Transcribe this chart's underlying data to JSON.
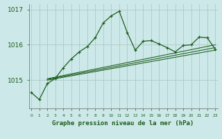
{
  "title": "Graphe pression niveau de la mer (hPa)",
  "background_color": "#cce8e8",
  "grid_color": "#b0c8c8",
  "line_color": "#1a5c1a",
  "axis_color": "#1a5c1a",
  "x_values": [
    0,
    1,
    2,
    3,
    4,
    5,
    6,
    7,
    8,
    9,
    10,
    11,
    12,
    13,
    14,
    15,
    16,
    17,
    18,
    19,
    20,
    21,
    22,
    23
  ],
  "main_line": [
    1014.65,
    1014.45,
    1014.9,
    1015.05,
    1015.35,
    1015.6,
    1015.8,
    1015.95,
    1016.2,
    1016.62,
    1016.82,
    1016.95,
    1016.35,
    1015.85,
    1016.1,
    1016.12,
    1016.02,
    1015.92,
    1015.8,
    1015.98,
    1016.0,
    1016.22,
    1016.2,
    1015.88
  ],
  "trend_line1": [
    [
      2,
      1015.0
    ],
    [
      23,
      1015.85
    ]
  ],
  "trend_line2": [
    [
      2,
      1015.02
    ],
    [
      23,
      1015.92
    ]
  ],
  "trend_line3": [
    [
      2,
      1015.04
    ],
    [
      23,
      1016.0
    ]
  ],
  "ylim": [
    1014.2,
    1017.15
  ],
  "yticks": [
    1015,
    1016,
    1017
  ],
  "xlim": [
    -0.3,
    23.3
  ]
}
